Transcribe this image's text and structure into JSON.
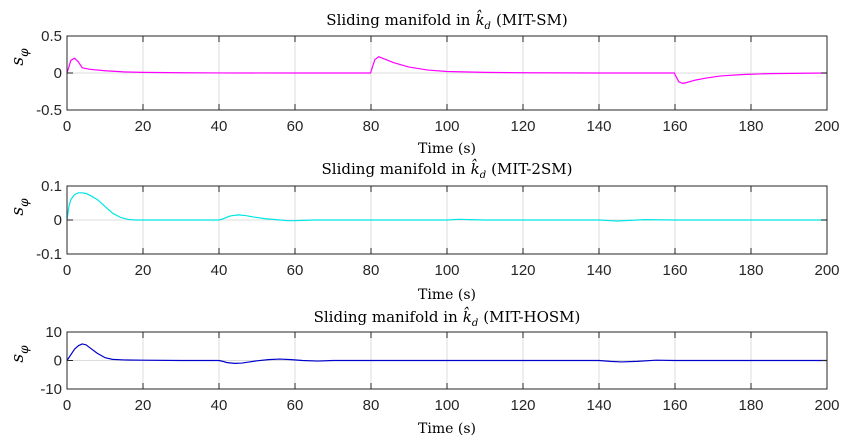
{
  "chart_data": [
    {
      "type": "line",
      "title_prefix": "Sliding manifold in",
      "title_symbol": "k̂",
      "title_subscript": "d",
      "title_suffix": "(MIT-SM)",
      "xlabel": "Time (s)",
      "ylabel_symbol": "s",
      "ylabel_subscript": "φ",
      "xlim": [
        0,
        200
      ],
      "ylim": [
        -0.5,
        0.5
      ],
      "xticks": [
        0,
        20,
        40,
        60,
        80,
        100,
        120,
        140,
        160,
        180,
        200
      ],
      "yticks": [
        -0.5,
        0,
        0.5
      ],
      "xtick_labels": [
        "0",
        "20",
        "40",
        "60",
        "80",
        "100",
        "120",
        "140",
        "160",
        "180",
        "200"
      ],
      "ytick_labels": [
        "-0.5",
        "0",
        "0.5"
      ],
      "grid": true,
      "series": [
        {
          "color": "#ff00ff",
          "x": [
            0,
            0.5,
            1,
            2,
            3,
            4,
            6,
            10,
            15,
            20,
            30,
            40,
            60,
            79.9,
            80,
            80.5,
            81,
            82,
            84,
            86,
            90,
            95,
            100,
            110,
            120,
            140,
            159.9,
            160,
            160.5,
            161,
            162,
            163,
            165,
            168,
            172,
            178,
            185,
            200
          ],
          "y": [
            0,
            0.08,
            0.17,
            0.2,
            0.15,
            0.07,
            0.05,
            0.03,
            0.015,
            0.008,
            0.003,
            0.001,
            0,
            0,
            0.02,
            0.1,
            0.18,
            0.22,
            0.18,
            0.14,
            0.08,
            0.04,
            0.02,
            0.008,
            0.003,
            0,
            0,
            -0.02,
            -0.07,
            -0.12,
            -0.14,
            -0.13,
            -0.1,
            -0.07,
            -0.04,
            -0.02,
            -0.008,
            0
          ]
        }
      ]
    },
    {
      "type": "line",
      "title_prefix": "Sliding manifold in",
      "title_symbol": "k̂",
      "title_subscript": "d",
      "title_suffix": "(MIT-2SM)",
      "xlabel": "Time (s)",
      "ylabel_symbol": "s",
      "ylabel_subscript": "φ",
      "xlim": [
        0,
        200
      ],
      "ylim": [
        -0.1,
        0.1
      ],
      "xticks": [
        0,
        20,
        40,
        60,
        80,
        100,
        120,
        140,
        160,
        180,
        200
      ],
      "yticks": [
        -0.1,
        0,
        0.1
      ],
      "xtick_labels": [
        "0",
        "20",
        "40",
        "60",
        "80",
        "100",
        "120",
        "140",
        "160",
        "180",
        "200"
      ],
      "ytick_labels": [
        "-0.1",
        "0",
        "0.1"
      ],
      "grid": true,
      "series": [
        {
          "color": "#00e5e5",
          "x": [
            0,
            0.5,
            1,
            2,
            3,
            4,
            5,
            6,
            8,
            10,
            12,
            14,
            16,
            18,
            20,
            30,
            40,
            41,
            42,
            43,
            45,
            47,
            49,
            52,
            55,
            58,
            60,
            62,
            65,
            70,
            80,
            90,
            100,
            103,
            106,
            110,
            120,
            130,
            140,
            143,
            145,
            148,
            152,
            160,
            180,
            200
          ],
          "y": [
            0,
            0.04,
            0.06,
            0.075,
            0.08,
            0.08,
            0.078,
            0.073,
            0.06,
            0.04,
            0.02,
            0.008,
            0.002,
            0,
            0,
            0,
            0,
            0.003,
            0.008,
            0.012,
            0.015,
            0.013,
            0.009,
            0.004,
            0.001,
            -0.002,
            -0.002,
            -0.001,
            0,
            0,
            0,
            0,
            0,
            0.002,
            0.001,
            0,
            0,
            0,
            0,
            -0.002,
            -0.003,
            -0.001,
            0.001,
            0,
            0,
            0
          ]
        }
      ]
    },
    {
      "type": "line",
      "title_prefix": "Sliding manifold in",
      "title_symbol": "k̂",
      "title_subscript": "d",
      "title_suffix": "(MIT-HOSM)",
      "xlabel": "Time (s)",
      "ylabel_symbol": "s",
      "ylabel_subscript": "φ",
      "xlim": [
        0,
        200
      ],
      "ylim": [
        -10,
        10
      ],
      "xticks": [
        0,
        20,
        40,
        60,
        80,
        100,
        120,
        140,
        160,
        180,
        200
      ],
      "yticks": [
        -10,
        0,
        10
      ],
      "xtick_labels": [
        "0",
        "20",
        "40",
        "60",
        "80",
        "100",
        "120",
        "140",
        "160",
        "180",
        "200"
      ],
      "ytick_labels": [
        "-10",
        "0",
        "10"
      ],
      "grid": true,
      "series": [
        {
          "color": "#0000cc",
          "x": [
            0,
            1,
            2,
            3,
            4,
            5,
            6,
            8,
            10,
            12,
            15,
            20,
            30,
            40,
            41,
            42,
            44,
            46,
            48,
            50,
            53,
            56,
            59,
            62,
            66,
            70,
            80,
            90,
            100,
            110,
            120,
            130,
            140,
            143,
            146,
            150,
            155,
            160,
            180,
            200
          ],
          "y": [
            0,
            2,
            4,
            5.2,
            5.8,
            5.5,
            4.5,
            2.5,
            1,
            0.4,
            0.2,
            0.1,
            0,
            0,
            -0.3,
            -0.7,
            -1,
            -0.9,
            -0.5,
            -0.1,
            0.3,
            0.5,
            0.3,
            0,
            -0.2,
            0,
            0,
            0,
            0,
            0,
            0,
            0,
            0,
            -0.3,
            -0.5,
            -0.3,
            0.1,
            0,
            0,
            0
          ]
        }
      ]
    }
  ]
}
